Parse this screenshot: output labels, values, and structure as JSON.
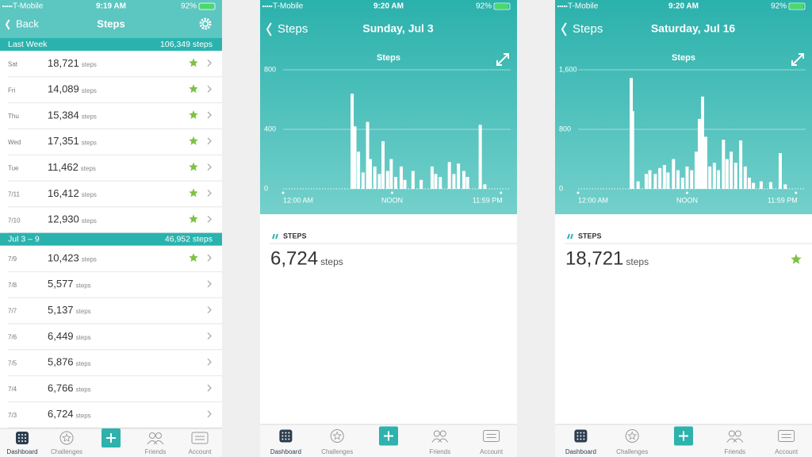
{
  "screens": [
    {
      "status": {
        "carrier": "T-Mobile",
        "time": "9:19 AM",
        "battery": "92%"
      },
      "nav": {
        "back": "Back",
        "title": "Steps"
      },
      "sections": [
        {
          "title": "Last Week",
          "total": "106,349 steps",
          "rows": [
            {
              "date": "Sat",
              "count": "18,721",
              "unit": "steps",
              "star": true
            },
            {
              "date": "Fri",
              "count": "14,089",
              "unit": "steps",
              "star": true
            },
            {
              "date": "Thu",
              "count": "15,384",
              "unit": "steps",
              "star": true
            },
            {
              "date": "Wed",
              "count": "17,351",
              "unit": "steps",
              "star": true
            },
            {
              "date": "Tue",
              "count": "11,462",
              "unit": "steps",
              "star": true
            },
            {
              "date": "7/11",
              "count": "16,412",
              "unit": "steps",
              "star": true
            },
            {
              "date": "7/10",
              "count": "12,930",
              "unit": "steps",
              "star": true
            }
          ]
        },
        {
          "title": "Jul 3 – 9",
          "total": "46,952 steps",
          "rows": [
            {
              "date": "7/9",
              "count": "10,423",
              "unit": "steps",
              "star": true
            },
            {
              "date": "7/8",
              "count": "5,577",
              "unit": "steps",
              "star": false
            },
            {
              "date": "7/7",
              "count": "5,137",
              "unit": "steps",
              "star": false
            },
            {
              "date": "7/6",
              "count": "6,449",
              "unit": "steps",
              "star": false
            },
            {
              "date": "7/5",
              "count": "5,876",
              "unit": "steps",
              "star": false
            },
            {
              "date": "7/4",
              "count": "6,766",
              "unit": "steps",
              "star": false
            },
            {
              "date": "7/3",
              "count": "6,724",
              "unit": "steps",
              "star": false
            }
          ]
        }
      ],
      "tabs": [
        "Dashboard",
        "Challenges",
        "Friends",
        "Account"
      ]
    },
    {
      "status": {
        "carrier": "T-Mobile",
        "time": "9:20 AM",
        "battery": "92%"
      },
      "nav": {
        "back": "Steps",
        "title": "Sunday, Jul 3"
      },
      "summary": {
        "label": "STEPS",
        "count": "6,724",
        "unit": "steps",
        "star": false
      },
      "tabs": [
        "Dashboard",
        "Challenges",
        "Friends",
        "Account"
      ]
    },
    {
      "status": {
        "carrier": "T-Mobile",
        "time": "9:20 AM",
        "battery": "92%"
      },
      "nav": {
        "back": "Steps",
        "title": "Saturday, Jul 16"
      },
      "summary": {
        "label": "STEPS",
        "count": "18,721",
        "unit": "steps",
        "star": true
      },
      "tabs": [
        "Dashboard",
        "Challenges",
        "Friends",
        "Account"
      ]
    }
  ],
  "chart_data": [
    {
      "type": "bar",
      "title": "Steps",
      "color": "#ffffff",
      "grid": true,
      "x": [
        7.6,
        7.9,
        8.3,
        8.8,
        9.3,
        9.6,
        10.1,
        10.6,
        11.0,
        11.5,
        11.9,
        12.4,
        13.0,
        13.4,
        14.3,
        15.2,
        16.4,
        16.8,
        17.3,
        18.3,
        18.8,
        19.3,
        19.9,
        20.3,
        21.7,
        22.2
      ],
      "values": [
        640,
        420,
        250,
        110,
        450,
        200,
        150,
        100,
        320,
        120,
        200,
        80,
        150,
        60,
        120,
        60,
        150,
        100,
        80,
        180,
        100,
        170,
        120,
        80,
        430,
        30
      ],
      "xlim": [
        0,
        24
      ],
      "xticks": [
        {
          "value": 0,
          "label": "12:00 AM"
        },
        {
          "value": 12,
          "label": "NOON"
        },
        {
          "value": 23.98,
          "label": "11:59 PM"
        }
      ],
      "ylim": [
        0,
        800
      ],
      "yticks": [
        0,
        400,
        800
      ]
    },
    {
      "type": "bar",
      "title": "Steps",
      "color": "#ffffff",
      "grid": true,
      "x": [
        5.85,
        6.0,
        6.6,
        7.5,
        7.9,
        8.5,
        9.0,
        9.5,
        9.9,
        10.5,
        11.0,
        11.5,
        12.0,
        12.5,
        13.0,
        13.35,
        13.7,
        14.05,
        14.5,
        15.0,
        15.45,
        16.0,
        16.4,
        16.85,
        17.35,
        17.9,
        18.4,
        18.85,
        19.3,
        20.15,
        21.2,
        22.25,
        22.8
      ],
      "values": [
        1490,
        1045,
        100,
        200,
        250,
        200,
        280,
        320,
        220,
        400,
        250,
        150,
        300,
        250,
        500,
        940,
        1240,
        700,
        300,
        350,
        250,
        660,
        400,
        500,
        350,
        650,
        300,
        150,
        80,
        100,
        90,
        480,
        60
      ],
      "xlim": [
        0,
        24
      ],
      "xticks": [
        {
          "value": 0,
          "label": "12:00 AM"
        },
        {
          "value": 12,
          "label": "NOON"
        },
        {
          "value": 23.98,
          "label": "11:59 PM"
        }
      ],
      "ylim": [
        0,
        1600
      ],
      "yticks": [
        0,
        800,
        {
          "value": 1600,
          "label": "1,600"
        }
      ]
    }
  ]
}
